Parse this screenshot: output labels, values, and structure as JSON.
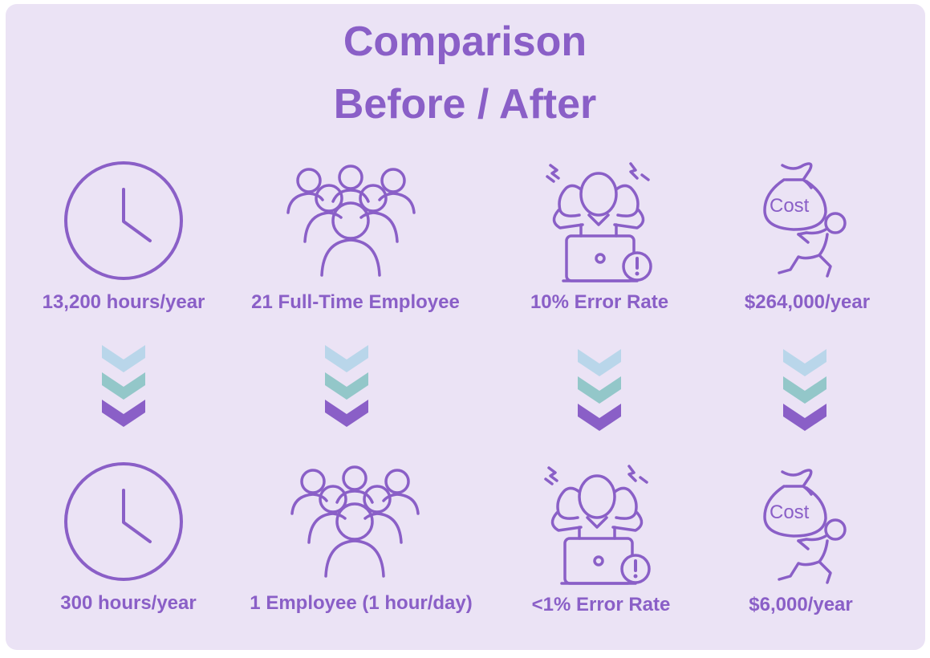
{
  "title": {
    "line1": "Comparison",
    "line2": "Before / After"
  },
  "colors": {
    "accent": "#8a5fc7",
    "background": "#ebe3f5",
    "arrow_light": "#b9d6ea",
    "arrow_teal": "#93c7c9",
    "arrow_dark": "#8a5fc7"
  },
  "before": [
    {
      "icon": "clock-icon",
      "label": "13,200 hours/year"
    },
    {
      "icon": "people-group-icon",
      "label": "21 Full-Time Employee"
    },
    {
      "icon": "stressed-person-laptop-icon",
      "label": "10% Error Rate"
    },
    {
      "icon": "cost-bag-carrier-icon",
      "label": "$264,000/year"
    }
  ],
  "transition_icon": "triple-chevron-down-icon",
  "after": [
    {
      "icon": "clock-icon",
      "label": "300 hours/year"
    },
    {
      "icon": "people-group-icon",
      "label": "1 Employee (1 hour/day)"
    },
    {
      "icon": "stressed-person-laptop-icon",
      "label": "<1% Error Rate"
    },
    {
      "icon": "cost-bag-carrier-icon",
      "label": "$6,000/year"
    }
  ],
  "bag_text": "Cost"
}
